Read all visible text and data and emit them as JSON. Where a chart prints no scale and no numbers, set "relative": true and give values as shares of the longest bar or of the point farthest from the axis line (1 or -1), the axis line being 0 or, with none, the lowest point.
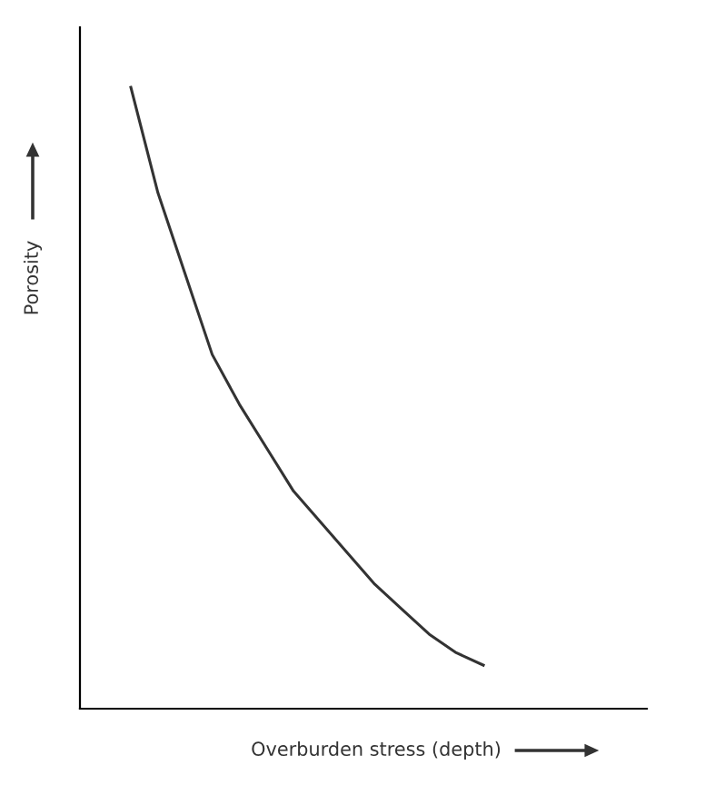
{
  "chart_data": {
    "type": "line",
    "relative": true,
    "xlabel": "Overburden stress (depth)",
    "ylabel": "Porosity",
    "categories": [
      null,
      null,
      null,
      null,
      null,
      null,
      null,
      null,
      null,
      null,
      null,
      null,
      null,
      null
    ],
    "series": [
      {
        "color": "#333333",
        "values": [
          1.0,
          0.83,
          0.7,
          0.57,
          0.49,
          0.42,
          0.35,
          0.3,
          0.25,
          0.2,
          0.16,
          0.12,
          0.09,
          0.07
        ]
      }
    ],
    "legend": false,
    "marker": "none",
    "line_style": "solid",
    "tick_labels": false
  }
}
